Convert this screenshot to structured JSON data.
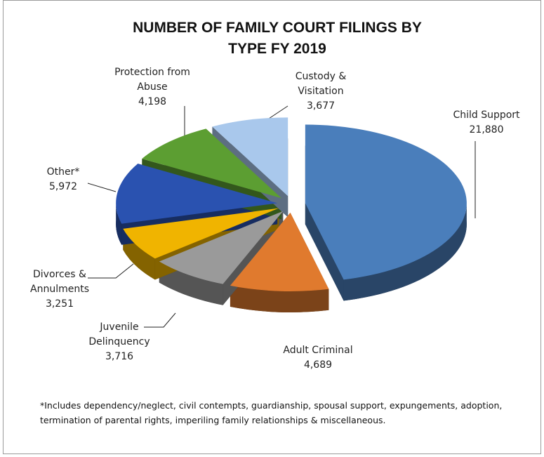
{
  "chart_data": {
    "type": "pie",
    "title": "NUMBER OF FAMILY COURT FILINGS BY TYPE FY 2019",
    "categories": [
      "Child Support",
      "Adult Criminal",
      "Juvenile Delinquency",
      "Divorces & Annulments",
      "Other*",
      "Protection from Abuse",
      "Custody & Visitation"
    ],
    "values": [
      21880,
      4689,
      3716,
      3251,
      5972,
      4198,
      3677
    ],
    "value_labels": [
      "21,880",
      "4,689",
      "3,716",
      "3,251",
      "5,972",
      "4,198",
      "3,677"
    ],
    "colors": [
      "#4a7ebb",
      "#e07a2e",
      "#9a9a9a",
      "#f0b400",
      "#2a52b0",
      "#5c9e32",
      "#a9c8ec"
    ],
    "note": "*Includes dependency/neglect, civil contempts, guardianship, spousal support, expungements, adoption, termination of parental rights, imperiling family relationships & miscellaneous."
  }
}
